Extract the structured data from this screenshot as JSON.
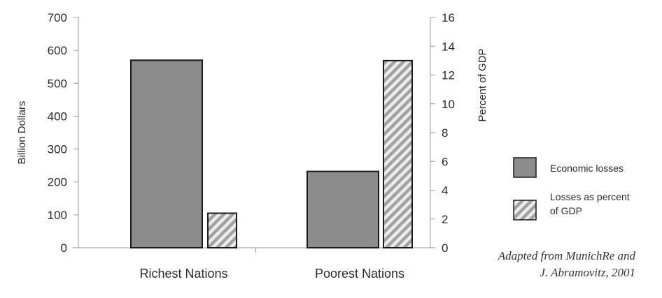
{
  "chart_data": {
    "type": "bar",
    "categories": [
      "Richest Nations",
      "Poorest Nations"
    ],
    "series": [
      {
        "name": "Economic losses",
        "axis": "left",
        "values": [
          570,
          232
        ],
        "color": "#8c8c8c",
        "pattern": "solid"
      },
      {
        "name": "Losses as percent of GDP",
        "axis": "right",
        "values": [
          2.4,
          13
        ],
        "color": "#b8b8b8",
        "pattern": "diagonal-hatch"
      }
    ],
    "ylabel": "Billion Dollars",
    "ylabel_right": "Percent of GDP",
    "ylim": [
      0,
      700
    ],
    "ylim_right": [
      0,
      16
    ],
    "yticks": [
      0,
      100,
      200,
      300,
      400,
      500,
      600,
      700
    ],
    "yticks_right": [
      0,
      2,
      4,
      6,
      8,
      10,
      12,
      14,
      16
    ],
    "legend_position": "right",
    "grid": false,
    "legend": [
      "Economic losses",
      "Losses as percent of GDP"
    ],
    "legend_lines": [
      [
        "Economic losses"
      ],
      [
        "Losses as percent",
        "of GDP"
      ]
    ]
  },
  "source": {
    "line1": "Adapted from MunichRe and",
    "line2": "J. Abramovitz, 2001"
  }
}
